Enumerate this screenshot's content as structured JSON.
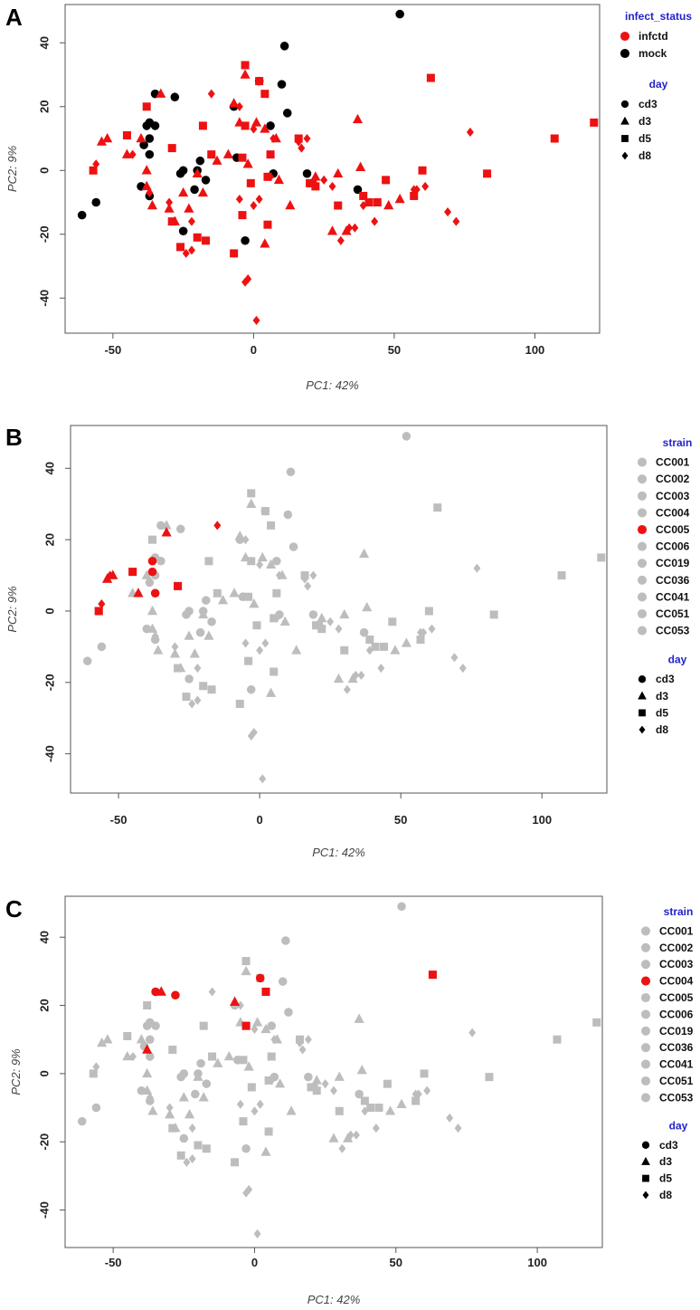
{
  "figure": {
    "colors": {
      "highlight": "#ee1111",
      "grey": "#bdbdbd",
      "black": "#000000",
      "legend_title": "#2222cc"
    }
  },
  "chart_data": [
    {
      "type": "scatter",
      "panel": "A",
      "xlabel": "PC1: 42%",
      "ylabel": "PC2: 9%",
      "xlim": [
        -67,
        123
      ],
      "ylim": [
        -51,
        52
      ],
      "xticks": [
        "-50",
        "0",
        "50",
        "100"
      ],
      "yticks": [
        "-40",
        "-20",
        "0",
        "20",
        "40"
      ],
      "legends": [
        {
          "title": "infect_status",
          "items": [
            {
              "label": "infctd",
              "color": "#ee1111",
              "shape": "circle"
            },
            {
              "label": "mock",
              "color": "#000000",
              "shape": "circle"
            }
          ]
        },
        {
          "title": "day",
          "items": [
            {
              "label": "cd3",
              "color": "#000000",
              "shape": "circle"
            },
            {
              "label": "d3",
              "color": "#000000",
              "shape": "triangle"
            },
            {
              "label": "d5",
              "color": "#000000",
              "shape": "square"
            },
            {
              "label": "d8",
              "color": "#000000",
              "shape": "diamond"
            }
          ]
        }
      ],
      "series": [
        {
          "group": "mock",
          "color": "#000000",
          "shape": "circle",
          "points": [
            [
              52,
              49
            ],
            [
              11,
              39
            ],
            [
              -35,
              24
            ],
            [
              -28,
              23
            ],
            [
              10,
              27
            ],
            [
              2,
              28
            ],
            [
              -7,
              20
            ],
            [
              -37,
              15
            ],
            [
              -38,
              14
            ],
            [
              -35,
              14
            ],
            [
              12,
              18
            ],
            [
              6,
              14
            ],
            [
              -37,
              10
            ],
            [
              -39,
              8
            ],
            [
              -37,
              5
            ],
            [
              -40,
              -5
            ],
            [
              -37,
              -8
            ],
            [
              -56,
              -10
            ],
            [
              -61,
              -14
            ],
            [
              -25,
              0
            ],
            [
              -26,
              -1
            ],
            [
              -20,
              0
            ],
            [
              -19,
              3
            ],
            [
              -21,
              -6
            ],
            [
              -25,
              -19
            ],
            [
              -17,
              -3
            ],
            [
              -6,
              4
            ],
            [
              -3,
              -22
            ],
            [
              7,
              -1
            ],
            [
              19,
              -1
            ],
            [
              37,
              -6
            ]
          ]
        },
        {
          "group": "infctd",
          "shape": "square",
          "color": "#ee1111",
          "points": [
            [
              -3,
              33
            ],
            [
              63,
              29
            ],
            [
              2,
              28
            ],
            [
              -45,
              11
            ],
            [
              -38,
              20
            ],
            [
              -29,
              7
            ],
            [
              -3,
              14
            ],
            [
              4,
              24
            ],
            [
              6,
              5
            ],
            [
              16,
              10
            ],
            [
              5,
              -2
            ],
            [
              -18,
              14
            ],
            [
              -15,
              5
            ],
            [
              -4,
              4
            ],
            [
              -1,
              -4
            ],
            [
              121,
              15
            ],
            [
              107,
              10
            ],
            [
              83,
              -1
            ],
            [
              60,
              0
            ],
            [
              57,
              -8
            ],
            [
              -57,
              0
            ],
            [
              -29,
              -16
            ],
            [
              -20,
              -21
            ],
            [
              -17,
              -22
            ],
            [
              -26,
              -24
            ],
            [
              -7,
              -26
            ],
            [
              -4,
              -14
            ],
            [
              5,
              -17
            ],
            [
              20,
              -4
            ],
            [
              21,
              -4
            ],
            [
              22,
              -5
            ],
            [
              30,
              -11
            ],
            [
              39,
              -8
            ],
            [
              44,
              -10
            ],
            [
              41,
              -10
            ],
            [
              47,
              -3
            ]
          ]
        },
        {
          "group": "infctd",
          "shape": "triangle",
          "color": "#ee1111",
          "points": [
            [
              -3,
              30
            ],
            [
              -7,
              21
            ],
            [
              -5,
              15
            ],
            [
              1,
              15
            ],
            [
              4,
              13
            ],
            [
              8,
              10
            ],
            [
              -52,
              10
            ],
            [
              -54,
              9
            ],
            [
              -40,
              10
            ],
            [
              -33,
              24
            ],
            [
              -45,
              5
            ],
            [
              -38,
              0
            ],
            [
              -38,
              -5
            ],
            [
              -36,
              -11
            ],
            [
              -20,
              -1
            ],
            [
              -25,
              -7
            ],
            [
              -30,
              -12
            ],
            [
              -23,
              -12
            ],
            [
              -18,
              -7
            ],
            [
              -13,
              3
            ],
            [
              -9,
              5
            ],
            [
              -2,
              2
            ],
            [
              9,
              -3
            ],
            [
              13,
              -11
            ],
            [
              22,
              -2
            ],
            [
              30,
              -1
            ],
            [
              37,
              16
            ],
            [
              38,
              1
            ],
            [
              52,
              -9
            ],
            [
              48,
              -11
            ],
            [
              -28,
              -16
            ],
            [
              4,
              -23
            ],
            [
              28,
              -19
            ],
            [
              33,
              -19
            ]
          ]
        },
        {
          "group": "infctd",
          "shape": "diamond",
          "color": "#ee1111",
          "points": [
            [
              -15,
              24
            ],
            [
              -5,
              20
            ],
            [
              0,
              13
            ],
            [
              7,
              10
            ],
            [
              16,
              9
            ],
            [
              17,
              7
            ],
            [
              19,
              10
            ],
            [
              -56,
              2
            ],
            [
              -43,
              5
            ],
            [
              -37,
              -7
            ],
            [
              -30,
              -10
            ],
            [
              -22,
              -16
            ],
            [
              -22,
              -25
            ],
            [
              -24,
              -26
            ],
            [
              -5,
              -9
            ],
            [
              0,
              -11
            ],
            [
              2,
              -9
            ],
            [
              1,
              -47
            ],
            [
              -2,
              -34
            ],
            [
              -3,
              -35
            ],
            [
              31,
              -22
            ],
            [
              34,
              -18
            ],
            [
              36,
              -18
            ],
            [
              39,
              -11
            ],
            [
              43,
              -16
            ],
            [
              57,
              -6
            ],
            [
              58,
              -6
            ],
            [
              61,
              -5
            ],
            [
              69,
              -13
            ],
            [
              72,
              -16
            ],
            [
              77,
              12
            ],
            [
              25,
              -3
            ],
            [
              28,
              -5
            ],
            [
              6,
              -2
            ]
          ]
        }
      ]
    },
    {
      "type": "scatter",
      "panel": "B",
      "xlabel": "PC1: 42%",
      "ylabel": "PC2: 9%",
      "xlim": [
        -67,
        123
      ],
      "ylim": [
        -51,
        52
      ],
      "xticks": [
        "-50",
        "0",
        "50",
        "100"
      ],
      "yticks": [
        "-40",
        "-20",
        "0",
        "20",
        "40"
      ],
      "legends": [
        {
          "title": "strain",
          "items": [
            {
              "label": "CC001",
              "color": "#bdbdbd",
              "shape": "circle"
            },
            {
              "label": "CC002",
              "color": "#bdbdbd",
              "shape": "circle"
            },
            {
              "label": "CC003",
              "color": "#bdbdbd",
              "shape": "circle"
            },
            {
              "label": "CC004",
              "color": "#bdbdbd",
              "shape": "circle"
            },
            {
              "label": "CC005",
              "color": "#ee1111",
              "shape": "circle"
            },
            {
              "label": "CC006",
              "color": "#bdbdbd",
              "shape": "circle"
            },
            {
              "label": "CC019",
              "color": "#bdbdbd",
              "shape": "circle"
            },
            {
              "label": "CC036",
              "color": "#bdbdbd",
              "shape": "circle"
            },
            {
              "label": "CC041",
              "color": "#bdbdbd",
              "shape": "circle"
            },
            {
              "label": "CC051",
              "color": "#bdbdbd",
              "shape": "circle"
            },
            {
              "label": "CC053",
              "color": "#bdbdbd",
              "shape": "circle"
            }
          ]
        },
        {
          "title": "day",
          "items": [
            {
              "label": "cd3",
              "color": "#000000",
              "shape": "circle"
            },
            {
              "label": "d3",
              "color": "#000000",
              "shape": "triangle"
            },
            {
              "label": "d5",
              "color": "#000000",
              "shape": "square"
            },
            {
              "label": "d8",
              "color": "#000000",
              "shape": "diamond"
            }
          ]
        }
      ],
      "highlight": {
        "strain": "CC005",
        "points": [
          [
            -38,
            14,
            "circle"
          ],
          [
            -38,
            11,
            "circle"
          ],
          [
            -37,
            5,
            "circle"
          ],
          [
            -45,
            11,
            "square"
          ],
          [
            -57,
            0,
            "square"
          ],
          [
            -29,
            7,
            "square"
          ],
          [
            -33,
            22,
            "triangle"
          ],
          [
            -52,
            10,
            "triangle"
          ],
          [
            -54,
            9,
            "triangle"
          ],
          [
            -43,
            5,
            "triangle"
          ],
          [
            -15,
            24,
            "diamond"
          ],
          [
            -56,
            2,
            "diamond"
          ],
          [
            -53,
            10,
            "diamond"
          ]
        ]
      }
    },
    {
      "type": "scatter",
      "panel": "C",
      "xlabel": "PC1: 42%",
      "ylabel": "PC2: 9%",
      "xlim": [
        -67,
        123
      ],
      "ylim": [
        -51,
        52
      ],
      "xticks": [
        "-50",
        "0",
        "50",
        "100"
      ],
      "yticks": [
        "-40",
        "-20",
        "0",
        "20",
        "40"
      ],
      "legends": [
        {
          "title": "strain",
          "items": [
            {
              "label": "CC001",
              "color": "#bdbdbd",
              "shape": "circle"
            },
            {
              "label": "CC002",
              "color": "#bdbdbd",
              "shape": "circle"
            },
            {
              "label": "CC003",
              "color": "#bdbdbd",
              "shape": "circle"
            },
            {
              "label": "CC004",
              "color": "#ee1111",
              "shape": "circle"
            },
            {
              "label": "CC005",
              "color": "#bdbdbd",
              "shape": "circle"
            },
            {
              "label": "CC006",
              "color": "#bdbdbd",
              "shape": "circle"
            },
            {
              "label": "CC019",
              "color": "#bdbdbd",
              "shape": "circle"
            },
            {
              "label": "CC036",
              "color": "#bdbdbd",
              "shape": "circle"
            },
            {
              "label": "CC041",
              "color": "#bdbdbd",
              "shape": "circle"
            },
            {
              "label": "CC051",
              "color": "#bdbdbd",
              "shape": "circle"
            },
            {
              "label": "CC053",
              "color": "#bdbdbd",
              "shape": "circle"
            }
          ]
        },
        {
          "title": "day",
          "items": [
            {
              "label": "cd3",
              "color": "#000000",
              "shape": "circle"
            },
            {
              "label": "d3",
              "color": "#000000",
              "shape": "triangle"
            },
            {
              "label": "d5",
              "color": "#000000",
              "shape": "square"
            },
            {
              "label": "d8",
              "color": "#000000",
              "shape": "diamond"
            }
          ]
        }
      ],
      "highlight": {
        "strain": "CC004",
        "points": [
          [
            -35,
            24,
            "circle"
          ],
          [
            -28,
            23,
            "circle"
          ],
          [
            2,
            28,
            "circle"
          ],
          [
            -33,
            24,
            "triangle"
          ],
          [
            -7,
            21,
            "triangle"
          ],
          [
            -38,
            7,
            "triangle"
          ],
          [
            4,
            24,
            "square"
          ],
          [
            -3,
            14,
            "square"
          ],
          [
            63,
            29,
            "square"
          ]
        ]
      }
    }
  ]
}
